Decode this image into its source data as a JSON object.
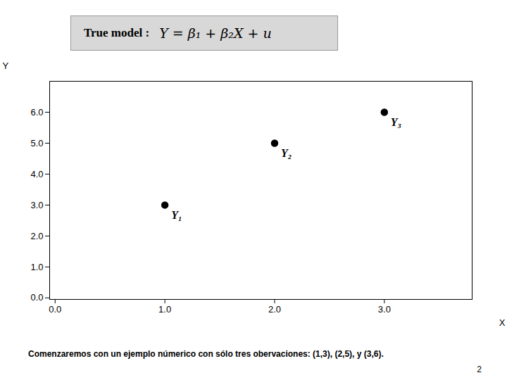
{
  "chart_data": {
    "type": "scatter",
    "x": [
      1,
      2,
      3
    ],
    "values": [
      3,
      5,
      6
    ],
    "color": "black",
    "point_labels": [
      "Y₁",
      "Y₂",
      "Y₃"
    ],
    "xlabel": "X",
    "ylabel": "Y",
    "xlim": [
      -0.05,
      3.8
    ],
    "ylim": [
      -0.05,
      7.0
    ],
    "xticks": [
      0,
      1,
      2,
      3
    ],
    "yticks": [
      0,
      1,
      2,
      3,
      4,
      5,
      6
    ],
    "grid": false,
    "annotations": [
      "True model :",
      "Y = β₁ + β₂X + u",
      "Comenzaremos con un ejemplo númerico con sólo tres obervaciones: (1,3), (2,5), y (3,6).",
      "2"
    ]
  }
}
